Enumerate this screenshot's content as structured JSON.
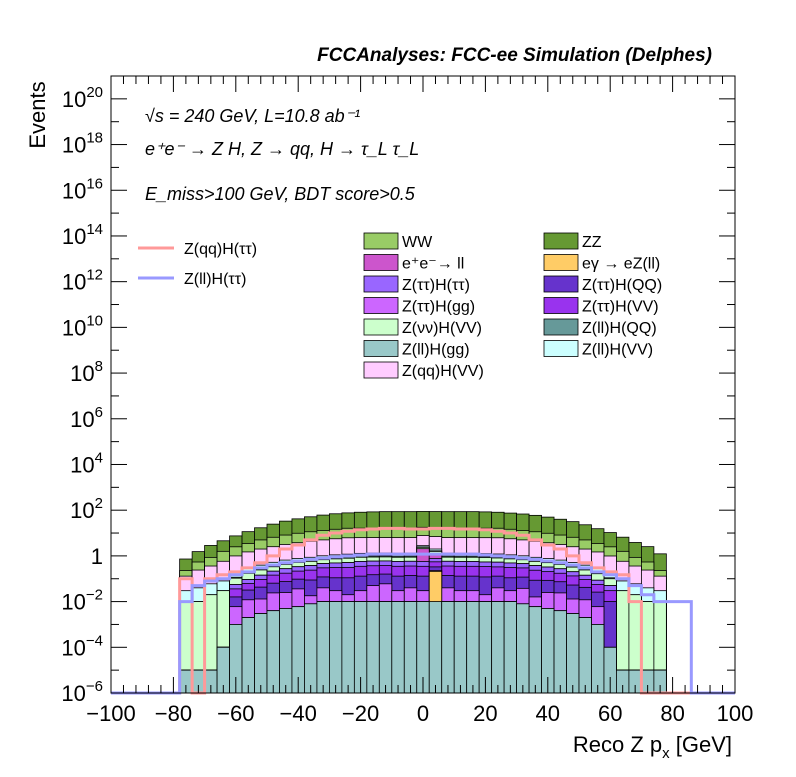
{
  "chart_data": {
    "type": "histogram_stack",
    "title": "FCCAnalyses: FCC-ee Simulation (Delphes)",
    "xlabel": "Reco Z p_x [GeV]",
    "ylabel": "Events",
    "xlim": [
      -100,
      100
    ],
    "ylim": [
      1e-06,
      1e+21
    ],
    "yscale": "log",
    "grid": false,
    "x_ticks": [
      -100,
      -80,
      -60,
      -40,
      -20,
      0,
      20,
      40,
      60,
      80,
      100
    ],
    "y_ticks": [
      {
        "exp": -6,
        "label": "10",
        "sup": "−6"
      },
      {
        "exp": -4,
        "label": "10",
        "sup": "−4"
      },
      {
        "exp": -2,
        "label": "10",
        "sup": "−2"
      },
      {
        "exp": 0,
        "label": "1",
        "sup": ""
      },
      {
        "exp": 2,
        "label": "10",
        "sup": "2"
      },
      {
        "exp": 4,
        "label": "10",
        "sup": "4"
      },
      {
        "exp": 6,
        "label": "10",
        "sup": "6"
      },
      {
        "exp": 8,
        "label": "10",
        "sup": "8"
      },
      {
        "exp": 10,
        "label": "10",
        "sup": "10"
      },
      {
        "exp": 12,
        "label": "10",
        "sup": "12"
      },
      {
        "exp": 14,
        "label": "10",
        "sup": "14"
      },
      {
        "exp": 16,
        "label": "10",
        "sup": "16"
      },
      {
        "exp": 18,
        "label": "10",
        "sup": "18"
      },
      {
        "exp": 20,
        "label": "10",
        "sup": "20"
      }
    ],
    "annotations": {
      "line1": "√s = 240 GeV, L=10.8 ab⁻¹",
      "line2": "e⁺e⁻ → Z H, Z → qq, H → τ_L τ_L",
      "line3": "E_miss>100 GeV, BDT score>0.5"
    },
    "bin_edges": [
      -78,
      -74,
      -70,
      -66,
      -62,
      -58,
      -54,
      -50,
      -46,
      -42,
      -38,
      -34,
      -30,
      -26,
      -22,
      -18,
      -14,
      -10,
      -6,
      -2,
      2,
      6,
      10,
      14,
      18,
      22,
      26,
      30,
      34,
      38,
      42,
      46,
      50,
      54,
      58,
      62,
      66,
      70,
      74,
      78
    ],
    "stack": [
      {
        "name": "Z(ll)H(gg)",
        "color": "#99c8c8",
        "values": [
          1e-05,
          1e-05,
          1e-05,
          0.0001,
          0.001,
          0.002,
          0.003,
          0.004,
          0.005,
          0.006,
          0.008,
          0.01,
          0.01,
          0.01,
          0.01,
          0.01,
          0.01,
          0.01,
          0.01,
          0.01,
          0.01,
          0.01,
          0.01,
          0.01,
          0.01,
          0.01,
          0.01,
          0.008,
          0.006,
          0.005,
          0.004,
          0.003,
          0.002,
          0.001,
          0.0001,
          1e-05,
          1e-05,
          1e-05,
          1e-05
        ]
      },
      {
        "name": "eγ → eZ(ll)",
        "color": "#ffcc66",
        "values": [
          0,
          0,
          0,
          0,
          0,
          0,
          0,
          0,
          0,
          0,
          0,
          0,
          0,
          0,
          0,
          0,
          0,
          0,
          0,
          0,
          0.2,
          0,
          0,
          0,
          0,
          0,
          0,
          0,
          0,
          0,
          0,
          0,
          0,
          0,
          0,
          0,
          0,
          0,
          0
        ]
      },
      {
        "name": "Z(ττ)H(gg)",
        "color": "#cc66ff",
        "values": [
          0,
          0,
          0,
          0,
          0.005,
          0.01,
          0.01,
          0.02,
          0.02,
          0.03,
          0.01,
          0.03,
          0.02,
          0.01,
          0.02,
          0.04,
          0.05,
          0.02,
          0.03,
          0.02,
          0.02,
          0.03,
          0.02,
          0.02,
          0.01,
          0.03,
          0.02,
          0.03,
          0.01,
          0.02,
          0.02,
          0.01,
          0.01,
          0.005,
          0,
          0,
          0,
          0,
          0
        ]
      },
      {
        "name": "Z(ττ)H(QQ)",
        "color": "#6633cc",
        "values": [
          0,
          0,
          0,
          0,
          0.01,
          0.02,
          0.03,
          0.04,
          0.05,
          0.06,
          0.07,
          0.08,
          0.08,
          0.09,
          0.1,
          0.1,
          0.1,
          0.1,
          0.1,
          0.1,
          0.1,
          0.1,
          0.1,
          0.1,
          0.1,
          0.09,
          0.08,
          0.08,
          0.07,
          0.06,
          0.05,
          0.04,
          0.03,
          0.02,
          0.01,
          0,
          0,
          0,
          0
        ]
      },
      {
        "name": "Z(ττ)H(VV)",
        "color": "#9933ee",
        "values": [
          0,
          0,
          0,
          0,
          0.02,
          0.03,
          0.05,
          0.08,
          0.1,
          0.12,
          0.15,
          0.18,
          0.2,
          0.2,
          0.22,
          0.22,
          0.22,
          0.22,
          0.22,
          0.22,
          0.22,
          0.22,
          0.22,
          0.22,
          0.22,
          0.2,
          0.2,
          0.18,
          0.15,
          0.12,
          0.1,
          0.08,
          0.05,
          0.03,
          0.02,
          0,
          0,
          0,
          0
        ]
      },
      {
        "name": "Z(ττ)H(ττ)",
        "color": "#9966ff",
        "values": [
          0,
          0,
          0,
          0,
          0.02,
          0.03,
          0.05,
          0.07,
          0.1,
          0.12,
          0.14,
          0.16,
          0.18,
          0.2,
          0.22,
          0.22,
          0.22,
          0.22,
          0.22,
          0.22,
          0.22,
          0.22,
          0.22,
          0.22,
          0.2,
          0.2,
          0.18,
          0.16,
          0.14,
          0.12,
          0.1,
          0.07,
          0.05,
          0.03,
          0.02,
          0,
          0,
          0,
          0
        ]
      },
      {
        "name": "e⁺e⁻→ ll",
        "color": "#cc55cc",
        "values": [
          0,
          0,
          0,
          0,
          0,
          0,
          0,
          0,
          0,
          0,
          0,
          0,
          0,
          0,
          0,
          0,
          0,
          0,
          0,
          1.5,
          0.5,
          0,
          0,
          0,
          0,
          0,
          0,
          0,
          0,
          0,
          0,
          0,
          0,
          0,
          0,
          0,
          0,
          0,
          0
        ]
      },
      {
        "name": "Z(νν)H(VV)",
        "color": "#ccffcc",
        "values": [
          0.01,
          0.01,
          0.02,
          0.03,
          0.05,
          0.08,
          0.1,
          0.12,
          0.15,
          0.18,
          0.2,
          0.22,
          0.25,
          0.28,
          0.3,
          0.3,
          0.3,
          0.3,
          0.3,
          0.3,
          0.3,
          0.3,
          0.3,
          0.3,
          0.3,
          0.28,
          0.25,
          0.22,
          0.2,
          0.18,
          0.15,
          0.12,
          0.1,
          0.08,
          0.05,
          0.03,
          0.02,
          0.01,
          0.01
        ]
      },
      {
        "name": "Z(ll)H(QQ)",
        "color": "#669999",
        "values": [
          0,
          0,
          0,
          0,
          0.01,
          0.02,
          0.03,
          0.04,
          0.05,
          0.06,
          0.07,
          0.08,
          0.09,
          0.1,
          0.1,
          0.1,
          0.1,
          0.1,
          0.1,
          0.1,
          0.1,
          0.1,
          0.1,
          0.1,
          0.1,
          0.1,
          0.09,
          0.08,
          0.07,
          0.06,
          0.05,
          0.04,
          0.03,
          0.02,
          0.01,
          0,
          0,
          0,
          0
        ]
      },
      {
        "name": "Z(ll)H(VV)",
        "color": "#ccffff",
        "values": [
          0.02,
          0.03,
          0.04,
          0.05,
          0.08,
          0.1,
          0.12,
          0.15,
          0.18,
          0.2,
          0.22,
          0.25,
          0.28,
          0.3,
          0.32,
          0.33,
          0.33,
          0.33,
          0.33,
          0.33,
          0.33,
          0.33,
          0.33,
          0.33,
          0.32,
          0.3,
          0.28,
          0.25,
          0.22,
          0.2,
          0.18,
          0.15,
          0.12,
          0.1,
          0.08,
          0.05,
          0.04,
          0.03,
          0.02
        ]
      },
      {
        "name": "Z(qq)H(VV)",
        "color": "#ffccff",
        "values": [
          0.1,
          0.2,
          0.3,
          0.5,
          0.8,
          1.2,
          1.6,
          2,
          2.5,
          3,
          3.5,
          4,
          4.5,
          5,
          5,
          5,
          5,
          5,
          5,
          5,
          5,
          5,
          5,
          5,
          5,
          5,
          4.5,
          4,
          3.5,
          3,
          2.5,
          2,
          1.6,
          1.2,
          0.8,
          0.5,
          0.3,
          0.2,
          0.1
        ]
      },
      {
        "name": "WW",
        "color": "#99cc66",
        "values": [
          0.1,
          0.3,
          0.5,
          1,
          1.5,
          2,
          3,
          4,
          5,
          6,
          7,
          8,
          9,
          10,
          10,
          10,
          10,
          10,
          10,
          10,
          10,
          10,
          10,
          10,
          10,
          10,
          9,
          8,
          7,
          6,
          5,
          4,
          3,
          2,
          1.5,
          1,
          0.5,
          0.3,
          0.1
        ]
      },
      {
        "name": "ZZ",
        "color": "#669933",
        "values": [
          0.5,
          1,
          2,
          3,
          5,
          8,
          12,
          18,
          25,
          32,
          40,
          48,
          55,
          60,
          65,
          68,
          70,
          70,
          70,
          70,
          70,
          70,
          70,
          70,
          68,
          65,
          60,
          55,
          48,
          40,
          32,
          25,
          18,
          12,
          8,
          5,
          3,
          2,
          1
        ]
      }
    ],
    "lines": [
      {
        "name": "Z(qq)H(ττ)",
        "color": "#ff9999",
        "bin_edges": [
          -100,
          -78,
          -74,
          -70,
          -66,
          -62,
          -58,
          -54,
          -50,
          -46,
          -42,
          -38,
          -34,
          -30,
          -26,
          -22,
          -18,
          -14,
          -10,
          -6,
          -2,
          2,
          6,
          10,
          14,
          18,
          22,
          26,
          30,
          34,
          38,
          42,
          46,
          50,
          54,
          58,
          62,
          66,
          70,
          74,
          100
        ],
        "values": [
          1e-06,
          0.1,
          1e-06,
          0.1,
          0.15,
          0.2,
          0.3,
          0.5,
          1,
          2,
          3,
          5,
          8,
          10,
          12,
          14,
          15,
          16,
          16,
          15,
          15,
          16,
          16,
          15,
          15,
          14,
          12,
          10,
          8,
          5,
          3,
          2,
          1,
          0.5,
          0.3,
          0.2,
          0.15,
          0.01,
          1e-06,
          1e-06
        ]
      },
      {
        "name": "Z(ll)H(ττ)",
        "color": "#9999ff",
        "bin_edges": [
          -100,
          -78,
          -74,
          -70,
          -66,
          -62,
          -58,
          -54,
          -50,
          -46,
          -42,
          -38,
          -34,
          -30,
          -26,
          -22,
          -18,
          -14,
          -10,
          -6,
          -2,
          2,
          6,
          10,
          14,
          18,
          22,
          26,
          30,
          34,
          38,
          42,
          46,
          50,
          54,
          58,
          62,
          66,
          70,
          74,
          78,
          86,
          100
        ],
        "values": [
          1e-06,
          0.01,
          0.05,
          0.08,
          0.1,
          0.15,
          0.2,
          0.3,
          0.4,
          0.5,
          0.6,
          0.7,
          0.8,
          0.9,
          1,
          1.1,
          1.2,
          1.2,
          1.2,
          1.2,
          1.2,
          1.2,
          1.2,
          1.2,
          1.2,
          1.1,
          1,
          0.9,
          0.8,
          0.7,
          0.6,
          0.5,
          0.4,
          0.3,
          0.2,
          0.15,
          0.1,
          0.05,
          0.02,
          0.01,
          0.01,
          1e-06
        ]
      }
    ],
    "legend": {
      "lines": [
        "Z(qq)H(ττ)",
        "Z(ll)H(ττ)"
      ],
      "stack_order": [
        "WW",
        "ZZ",
        "e⁺e⁻→ ll",
        "eγ → eZ(ll)",
        "Z(ττ)H(ττ)",
        "Z(ττ)H(QQ)",
        "Z(ττ)H(gg)",
        "Z(ττ)H(VV)",
        "Z(νν)H(VV)",
        "Z(ll)H(QQ)",
        "Z(ll)H(gg)",
        "Z(ll)H(VV)",
        "Z(qq)H(VV)"
      ]
    }
  }
}
